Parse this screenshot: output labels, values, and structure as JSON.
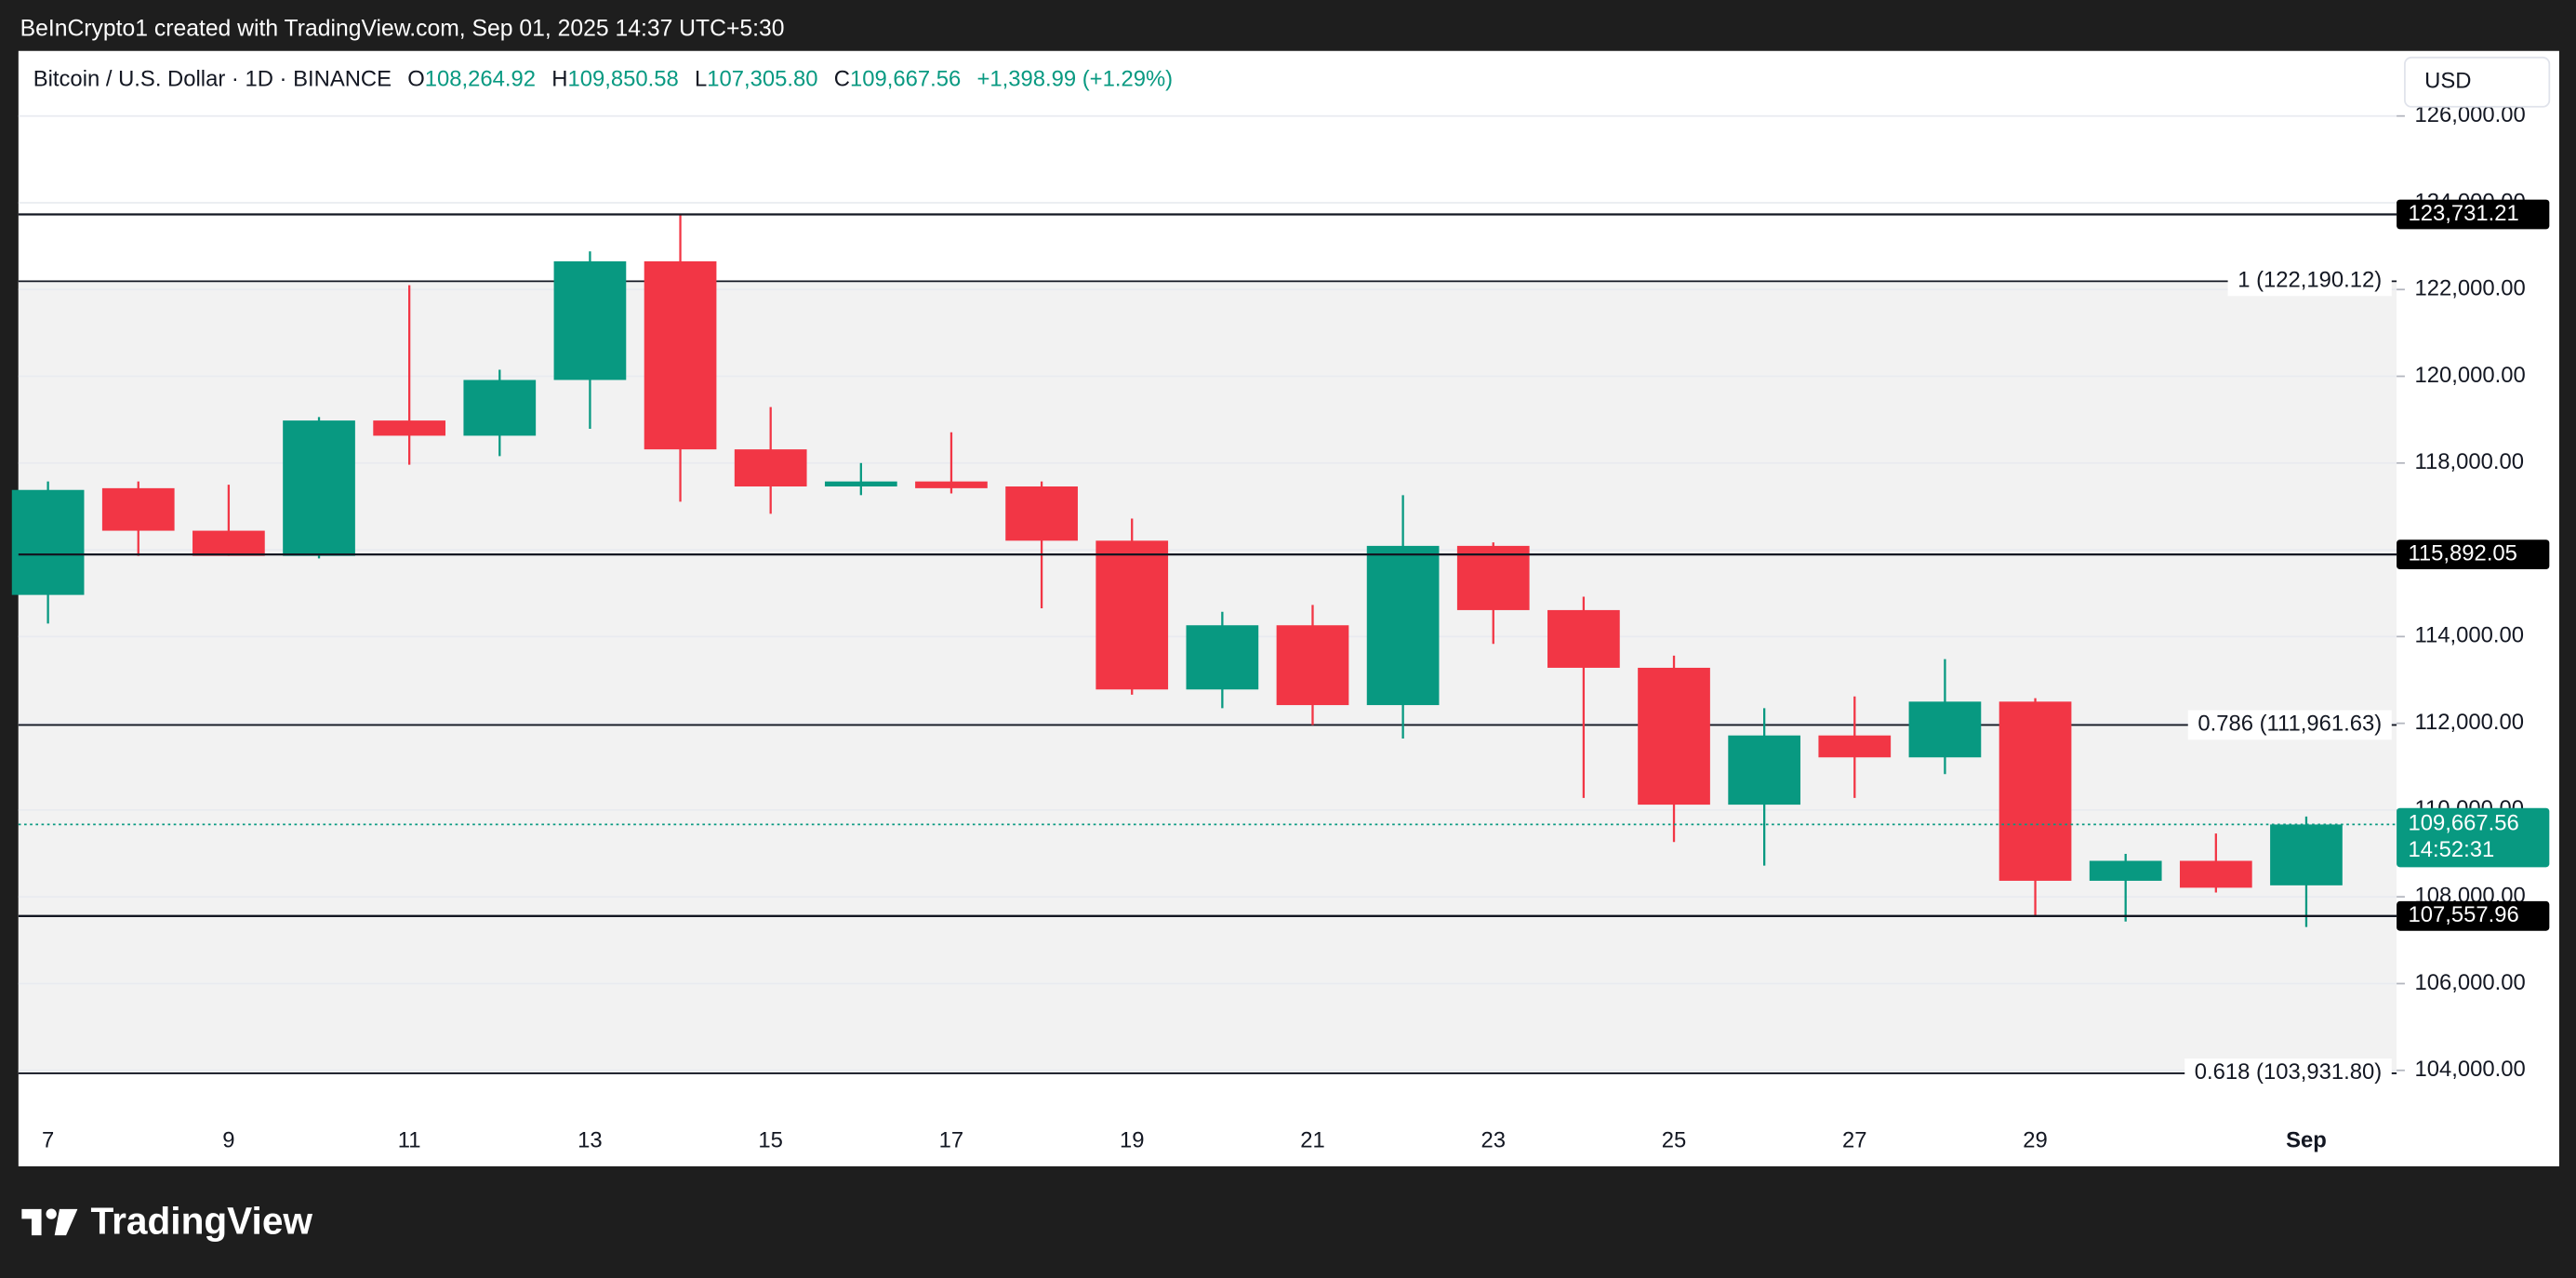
{
  "header": {
    "attribution": "BeInCrypto1 created with TradingView.com, Sep 01, 2025 14:37 UTC+5:30"
  },
  "legend": {
    "symbol": "Bitcoin / U.S. Dollar · 1D · BINANCE",
    "items": [
      {
        "key": "O",
        "value": "108,264.92"
      },
      {
        "key": "H",
        "value": "109,850.58"
      },
      {
        "key": "L",
        "value": "107,305.80"
      },
      {
        "key": "C",
        "value": "109,667.56"
      }
    ],
    "change": "+1,398.99 (+1.29%)"
  },
  "currency_button": "USD",
  "footer": {
    "logo": "TradingView"
  },
  "chart_data": {
    "type": "candlestick",
    "categories": [
      "7",
      null,
      "9",
      null,
      "11",
      null,
      "13",
      null,
      "15",
      null,
      "17",
      null,
      "19",
      null,
      "21",
      null,
      "23",
      null,
      "25",
      null,
      "27",
      null,
      "29",
      null,
      null,
      "Sep"
    ],
    "open": [
      114960,
      117420,
      116440,
      115860,
      118980,
      118630,
      119915,
      122650,
      118315,
      117460,
      117575,
      117460,
      116210,
      112780,
      114260,
      112420,
      116090,
      114610,
      113280,
      110125,
      111720,
      111215,
      112500,
      108370,
      108830,
      108264.92
    ],
    "high": [
      117575,
      117575,
      117500,
      119060,
      122100,
      120150,
      122880,
      123731,
      119290,
      118000,
      118710,
      117575,
      116720,
      114570,
      114730,
      117260,
      116170,
      114920,
      113560,
      112350,
      112620,
      113480,
      112580,
      108990,
      109460,
      109850.58
    ],
    "low": [
      114300,
      115860,
      115860,
      115800,
      117960,
      118160,
      118790,
      117110,
      116830,
      117260,
      117300,
      114650,
      112660,
      112350,
      111960,
      111650,
      113830,
      110280,
      109265,
      108720,
      110280,
      110830,
      107550,
      107430,
      108100,
      107305.8
    ],
    "close": [
      117380,
      116440,
      115860,
      118980,
      118630,
      119915,
      122650,
      118315,
      117460,
      117575,
      117420,
      116210,
      112780,
      114260,
      112420,
      116090,
      114610,
      113280,
      110125,
      111720,
      111215,
      112500,
      108370,
      108830,
      108210,
      109667.56
    ],
    "up_color": "#089981",
    "down_color": "#f23645",
    "ylim": [
      103000,
      127500
    ],
    "yticks": [
      {
        "value": 104000,
        "label": "104,000.00"
      },
      {
        "value": 106000,
        "label": "106,000.00"
      },
      {
        "value": 108000,
        "label": "108,000.00"
      },
      {
        "value": 110000,
        "label": "110,000.00"
      },
      {
        "value": 112000,
        "label": "112,000.00"
      },
      {
        "value": 114000,
        "label": "114,000.00"
      },
      {
        "value": 116000,
        "label": "116,000.00"
      },
      {
        "value": 118000,
        "label": "118,000.00"
      },
      {
        "value": 120000,
        "label": "120,000.00"
      },
      {
        "value": 122000,
        "label": "122,000.00"
      },
      {
        "value": 124000,
        "label": "124,000.00"
      },
      {
        "value": 126000,
        "label": "126,000.00"
      }
    ],
    "grid": true,
    "price_levels": [
      {
        "value": 123731.21,
        "label": "123,731.21"
      },
      {
        "value": 115892.05,
        "label": "115,892.05"
      },
      {
        "value": 107557.96,
        "label": "107,557.96"
      }
    ],
    "fib_levels": [
      {
        "value": 122190.12,
        "label": "1 (122,190.12)"
      },
      {
        "value": 111961.63,
        "label": "0.786 (111,961.63)"
      },
      {
        "value": 103931.8,
        "label": "0.618 (103,931.80)"
      }
    ],
    "fib_fill": "#f2f2f2",
    "last_price": {
      "value": 109667.56,
      "label": "109,667.56"
    },
    "countdown": "14:52:31"
  }
}
